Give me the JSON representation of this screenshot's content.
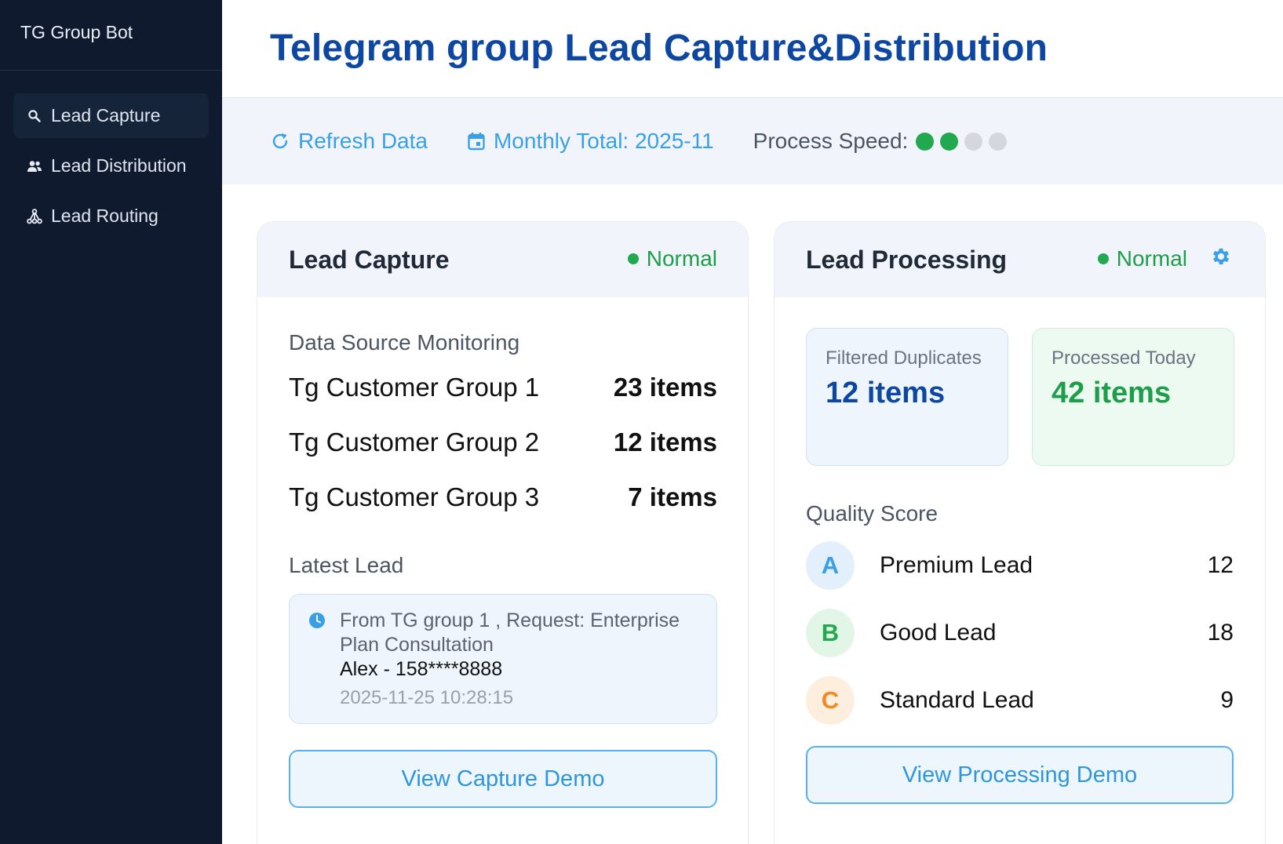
{
  "app": {
    "brand": "TG Group Bot"
  },
  "sidebar": {
    "items": [
      {
        "label": "Lead Capture",
        "icon": "search-icon",
        "active": true
      },
      {
        "label": "Lead Distribution",
        "icon": "users-icon",
        "active": false
      },
      {
        "label": "Lead Routing",
        "icon": "routing-icon",
        "active": false
      }
    ]
  },
  "header": {
    "title": "Telegram group Lead Capture&Distribution"
  },
  "toolbar": {
    "refresh_label": "Refresh Data",
    "monthly_label": "Monthly Total: 2025-11",
    "speed_label": "Process Speed:",
    "speed_level": 2,
    "speed_max": 4
  },
  "capture_card": {
    "title": "Lead Capture",
    "status": "Normal",
    "monitor_label": "Data Source Monitoring",
    "sources": [
      {
        "name": "Tg Customer Group 1",
        "count": "23 items"
      },
      {
        "name": "Tg Customer Group 2",
        "count": "12 items"
      },
      {
        "name": "Tg Customer Group 3",
        "count": "7 items"
      }
    ],
    "latest_label": "Latest Lead",
    "latest": {
      "line1": "From TG group 1 , Request: Enterprise Plan Consultation",
      "line2": "Alex - 158****8888",
      "time": "2025-11-25 10:28:15"
    },
    "button": "View Capture Demo"
  },
  "processing_card": {
    "title": "Lead Processing",
    "status": "Normal",
    "filtered": {
      "label": "Filtered Duplicates",
      "value": "12 items"
    },
    "processed": {
      "label": "Processed Today",
      "value": "42 items"
    },
    "quality_label": "Quality Score",
    "quality": [
      {
        "grade": "A",
        "name": "Premium Lead",
        "count": "12"
      },
      {
        "grade": "B",
        "name": "Good Lead",
        "count": "18"
      },
      {
        "grade": "C",
        "name": "Standard Lead",
        "count": "9"
      }
    ],
    "button": "View Processing Demo"
  },
  "colors": {
    "sidebar_bg": "#101a2e",
    "title": "#0d47a1",
    "accent": "#3aa0e6",
    "status_green": "#22a84f",
    "grade_a": "#3aa0e6",
    "grade_b": "#22a84f",
    "grade_c": "#f08a24"
  }
}
